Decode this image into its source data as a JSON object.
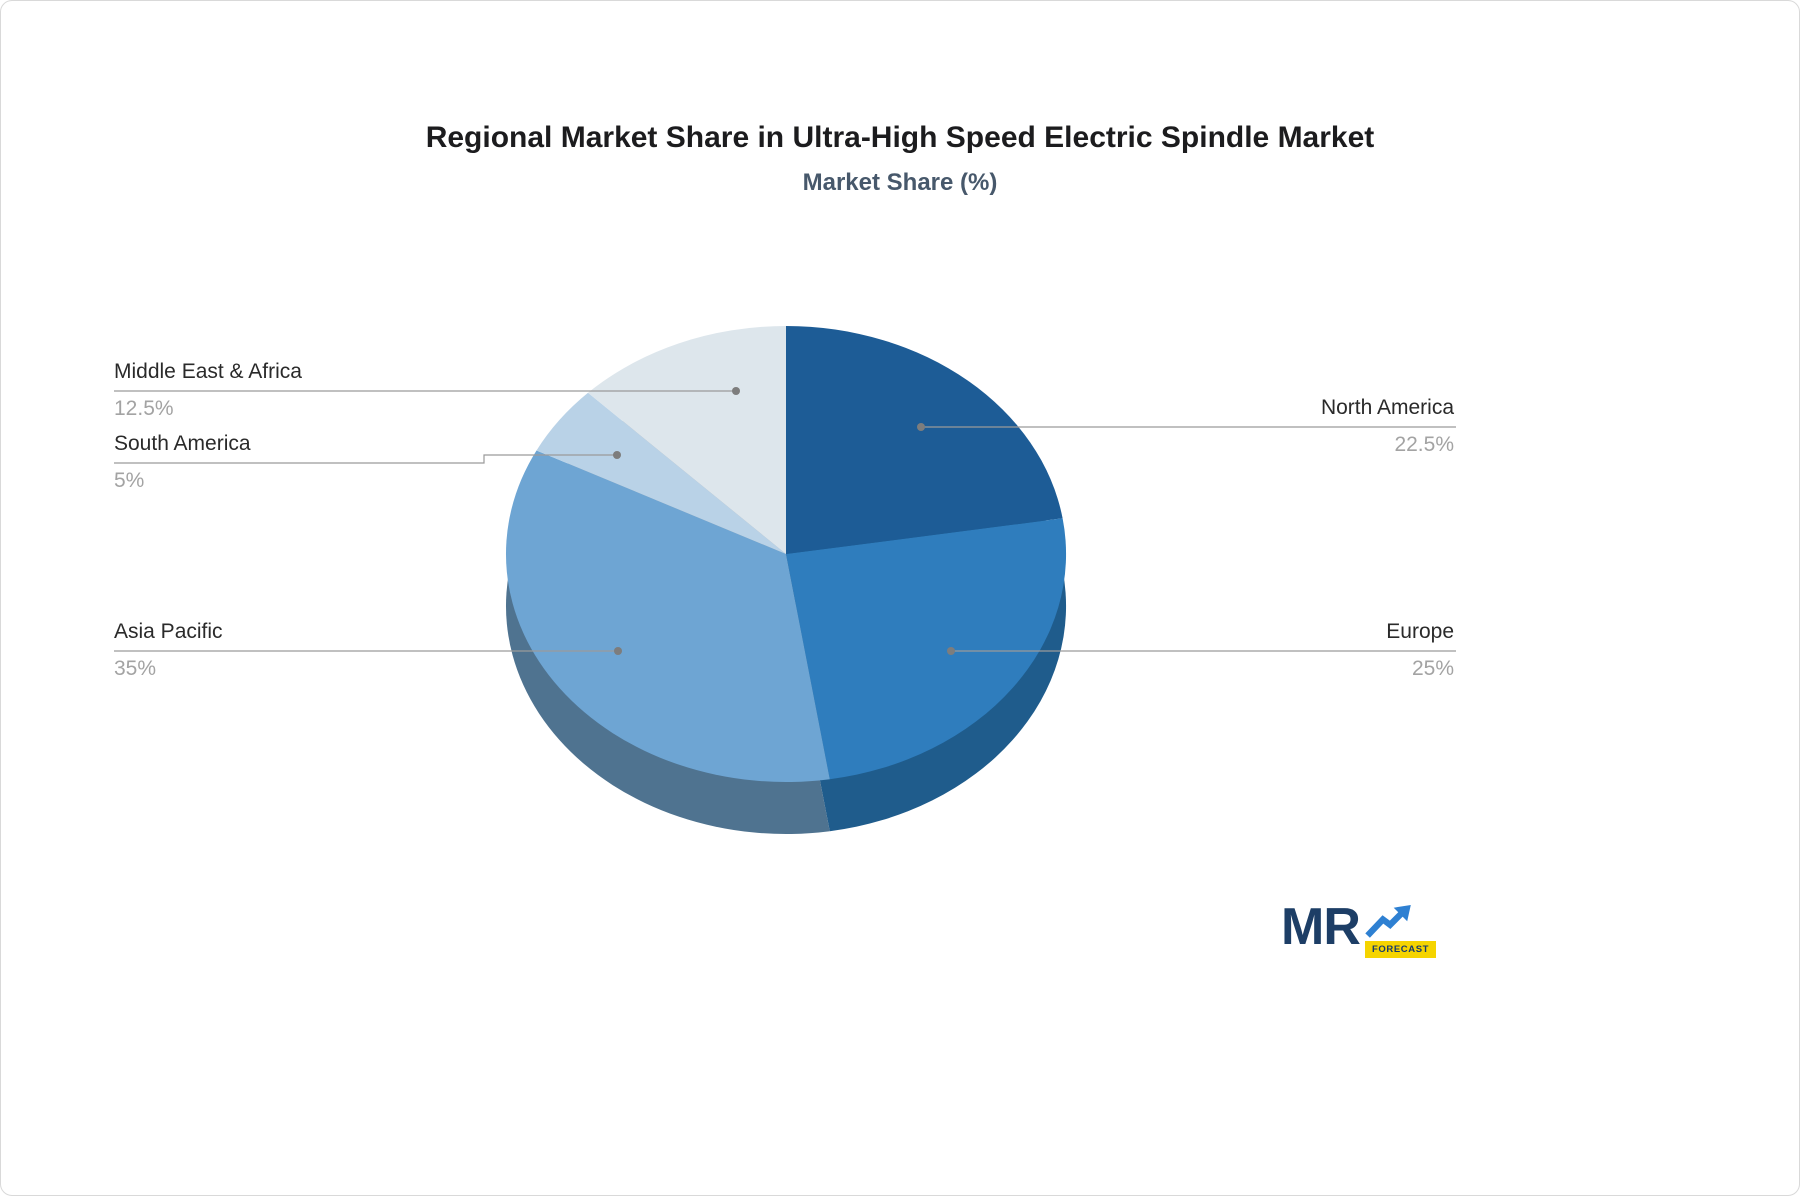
{
  "title": "Regional Market Share in Ultra-High Speed Electric Spindle Market",
  "subtitle": "Market Share (%)",
  "chart_data": {
    "type": "pie",
    "title": "Regional Market Share in Ultra-High Speed Electric Spindle Market",
    "subtitle": "Market Share (%)",
    "unit": "%",
    "style": "3d-pie",
    "start_angle_deg": 0,
    "direction": "clockwise",
    "legend_position": "none",
    "labels_style": "leader-lines",
    "slices": [
      {
        "label": "North America",
        "value": 22.5,
        "display": "22.5%",
        "color": "#1d5c96",
        "side_color": "#154469"
      },
      {
        "label": "Europe",
        "value": 25,
        "display": "25%",
        "color": "#2f7dbd",
        "side_color": "#1f5c8c"
      },
      {
        "label": "Asia Pacific",
        "value": 35,
        "display": "35%",
        "color": "#6ea5d3",
        "side_color": "#4f7390"
      },
      {
        "label": "South America",
        "value": 5,
        "display": "5%",
        "color": "#b9d2e7",
        "side_color": "#8195a5"
      },
      {
        "label": "Middle East & Africa",
        "value": 12.5,
        "display": "12.5%",
        "color": "#dde6ec",
        "side_color": "#9aa1a6"
      }
    ]
  },
  "logo": {
    "text": "MR",
    "badge": "FORECAST",
    "text_color": "#1d3e66",
    "accent": "#2e80d2",
    "badge_bg": "#f5d400"
  }
}
